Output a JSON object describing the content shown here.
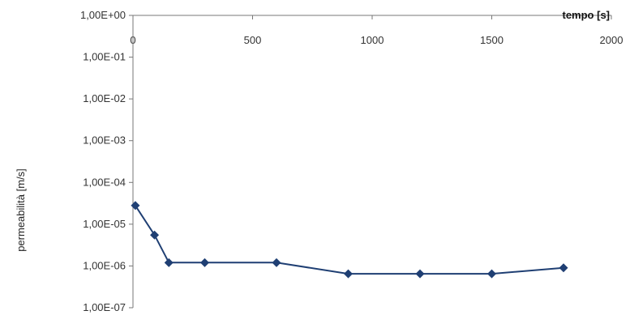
{
  "chart_data": {
    "type": "line",
    "title": "",
    "xlabel": "tempo [s]",
    "ylabel": "permeabilità [m/s]",
    "xlim": [
      0,
      2000
    ],
    "ylim": [
      1e-07,
      1
    ],
    "y_scale": "log",
    "grid": false,
    "legend": "none",
    "x_tick_labels": [
      "0",
      "500",
      "1000",
      "1500",
      "2000"
    ],
    "x_ticks": [
      0,
      500,
      1000,
      1500,
      2000
    ],
    "y_tick_labels": [
      "1,00E+00",
      "1,00E-01",
      "1,00E-02",
      "1,00E-03",
      "1,00E-04",
      "1,00E-05",
      "1,00E-06",
      "1,00E-07"
    ],
    "y_ticks": [
      1,
      0.1,
      0.01,
      0.001,
      0.0001,
      1e-05,
      1e-06,
      1e-07
    ],
    "series": [
      {
        "color": "#1f3f73",
        "marker": "diamond",
        "x": [
          10,
          90,
          150,
          300,
          600,
          900,
          1200,
          1500,
          1800
        ],
        "y": [
          2.8e-05,
          5.5e-06,
          1.2e-06,
          1.2e-06,
          1.2e-06,
          6.5e-07,
          6.5e-07,
          6.5e-07,
          9e-07
        ]
      }
    ]
  }
}
